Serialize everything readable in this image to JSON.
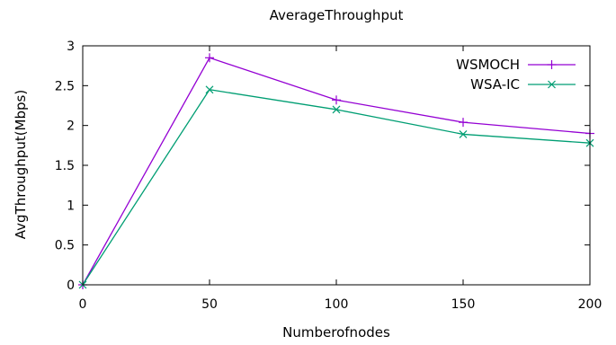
{
  "chart_data": {
    "type": "line",
    "title": "AverageThroughput",
    "xlabel": "Numberofnodes",
    "ylabel": "AvgThroughput(Mbps)",
    "x": [
      0,
      50,
      100,
      150,
      200
    ],
    "xlim": [
      0,
      200
    ],
    "ylim": [
      0,
      3
    ],
    "xticks": [
      0,
      50,
      100,
      150,
      200
    ],
    "yticks": [
      0,
      0.5,
      1,
      1.5,
      2,
      2.5,
      3
    ],
    "xtick_labels": [
      "0",
      "50",
      "100",
      "150",
      "200"
    ],
    "ytick_labels": [
      "0",
      "0.5",
      "1",
      "1.5",
      "2",
      "2.5",
      "3"
    ],
    "grid": false,
    "legend_position": "top-right",
    "series": [
      {
        "name": "WSMOCH",
        "values": [
          0,
          2.85,
          2.32,
          2.04,
          1.9
        ],
        "color": "#9400d3",
        "marker": "plus"
      },
      {
        "name": "WSA-IC",
        "values": [
          0,
          2.45,
          2.2,
          1.89,
          1.78
        ],
        "color": "#009e73",
        "marker": "cross"
      }
    ]
  }
}
